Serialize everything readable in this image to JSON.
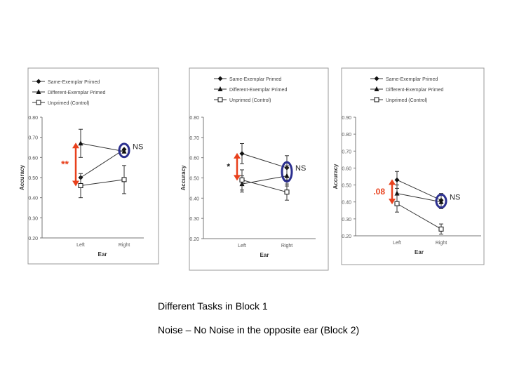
{
  "captions": {
    "line1": "Different Tasks in Block 1",
    "line2": "Noise – No Noise in the opposite ear (Block 2)"
  },
  "colors": {
    "arrow": "#e8401c",
    "ellipse": "#2b2f8f",
    "annotation_red": "#e8401c"
  },
  "chart_data": [
    {
      "type": "line",
      "categories": [
        "Left",
        "Right"
      ],
      "xlabel": "Ear",
      "ylabel": "Accuracy",
      "ylim": [
        0.2,
        0.8
      ],
      "yticks": [
        "0.20",
        "0.30",
        "0.40",
        "0.50",
        "0.60",
        "0.70",
        "0.80"
      ],
      "legend": [
        "Same-Exemplar Primed",
        "Different-Exemplar Primed",
        "Unprimed (Control)"
      ],
      "series": [
        {
          "name": "Same-Exemplar Primed",
          "marker": "diamond",
          "values": [
            0.5,
            0.64
          ],
          "errors": [
            0.0,
            0.0
          ]
        },
        {
          "name": "Different-Exemplar Primed",
          "marker": "triangle",
          "values": [
            0.67,
            0.63
          ],
          "errors": [
            0.07,
            0.0
          ]
        },
        {
          "name": "Unprimed (Control)",
          "marker": "square",
          "values": [
            0.46,
            0.49
          ],
          "errors": [
            0.06,
            0.07
          ]
        }
      ],
      "annotations": {
        "left": "**",
        "right": "NS"
      }
    },
    {
      "type": "line",
      "categories": [
        "Left",
        "Right"
      ],
      "xlabel": "Ear",
      "ylabel": "Accuracy",
      "ylim": [
        0.2,
        0.8
      ],
      "yticks": [
        "0.20",
        "0.30",
        "0.40",
        "0.50",
        "0.60",
        "0.70",
        "0.80"
      ],
      "legend": [
        "Same-Exemplar Primed",
        "Different-Exemplar Primed",
        "Unprimed (Control)"
      ],
      "series": [
        {
          "name": "Same-Exemplar Primed",
          "marker": "diamond",
          "values": [
            0.62,
            0.55
          ],
          "errors": [
            0.05,
            0.06
          ]
        },
        {
          "name": "Different-Exemplar Primed",
          "marker": "triangle",
          "values": [
            0.47,
            0.51
          ],
          "errors": [
            0.04,
            0.05
          ]
        },
        {
          "name": "Unprimed (Control)",
          "marker": "square",
          "values": [
            0.49,
            0.43
          ],
          "errors": [
            0.05,
            0.04
          ]
        }
      ],
      "annotations": {
        "left": "*",
        "right": "NS"
      }
    },
    {
      "type": "line",
      "categories": [
        "Left",
        "Right"
      ],
      "xlabel": "Ear",
      "ylabel": "Accuracy",
      "ylim": [
        0.2,
        0.9
      ],
      "yticks": [
        "0.20",
        "0.30",
        "0.40",
        "0.50",
        "0.60",
        "0.70",
        "0.80",
        "0.90"
      ],
      "legend": [
        "Same-Exemplar Primed",
        "Different-Exemplar Primed",
        "Unprimed (Control)"
      ],
      "series": [
        {
          "name": "Same-Exemplar Primed",
          "marker": "diamond",
          "values": [
            0.53,
            0.41
          ],
          "errors": [
            0.05,
            0.04
          ]
        },
        {
          "name": "Different-Exemplar Primed",
          "marker": "triangle",
          "values": [
            0.45,
            0.4
          ],
          "errors": [
            0.05,
            0.04
          ]
        },
        {
          "name": "Unprimed (Control)",
          "marker": "square",
          "values": [
            0.39,
            0.24
          ],
          "errors": [
            0.05,
            0.03
          ]
        }
      ],
      "annotations": {
        "left": ".08",
        "right": "NS"
      }
    }
  ]
}
